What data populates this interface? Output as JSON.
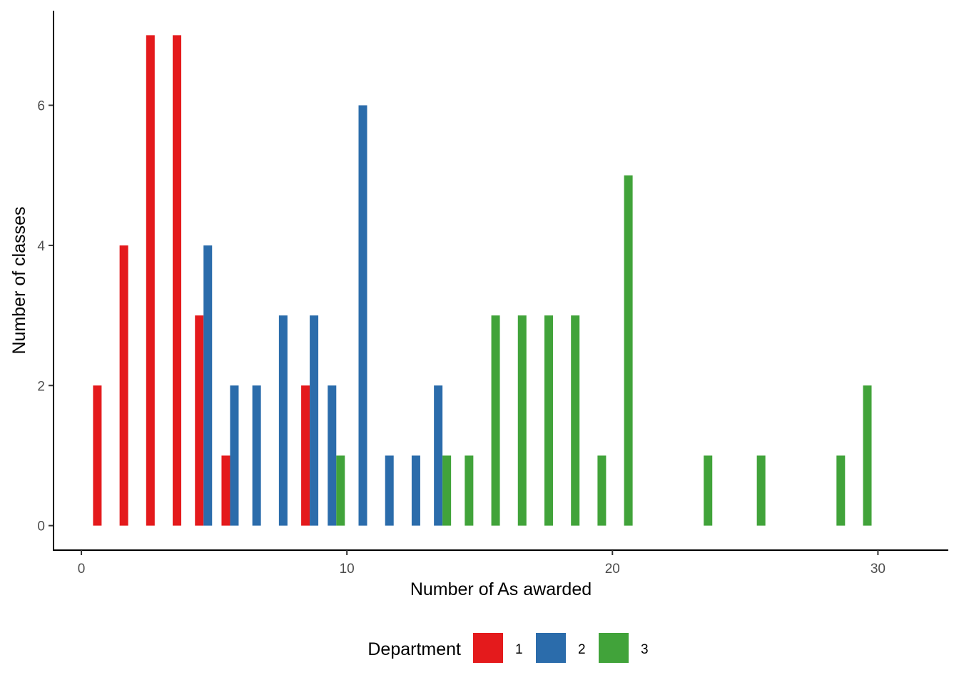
{
  "chart_data": {
    "type": "bar",
    "xlabel": "Number of As awarded",
    "ylabel": "Number of classes",
    "xlim": [
      -1.05,
      32.65
    ],
    "ylim": [
      -0.35,
      7.35
    ],
    "xticks": [
      0,
      10,
      20,
      30
    ],
    "yticks": [
      0,
      2,
      4,
      6
    ],
    "grid": false,
    "legend": {
      "title": "Department",
      "position": "bottom"
    },
    "series": [
      {
        "name": "1",
        "color": "#E41A1C",
        "points": [
          {
            "x": 1,
            "y": 2
          },
          {
            "x": 2,
            "y": 4
          },
          {
            "x": 3,
            "y": 7
          },
          {
            "x": 4,
            "y": 7
          },
          {
            "x": 5,
            "y": 3
          },
          {
            "x": 6,
            "y": 1
          },
          {
            "x": 9,
            "y": 2
          }
        ]
      },
      {
        "name": "2",
        "color": "#2B6CAB",
        "points": [
          {
            "x": 5,
            "y": 4
          },
          {
            "x": 6,
            "y": 2
          },
          {
            "x": 7,
            "y": 2
          },
          {
            "x": 8,
            "y": 3
          },
          {
            "x": 9,
            "y": 3
          },
          {
            "x": 10,
            "y": 2
          },
          {
            "x": 11,
            "y": 6
          },
          {
            "x": 12,
            "y": 1
          },
          {
            "x": 13,
            "y": 1
          },
          {
            "x": 14,
            "y": 2
          }
        ]
      },
      {
        "name": "3",
        "color": "#41A33A",
        "points": [
          {
            "x": 10,
            "y": 1
          },
          {
            "x": 14,
            "y": 1
          },
          {
            "x": 15,
            "y": 1
          },
          {
            "x": 16,
            "y": 3
          },
          {
            "x": 17,
            "y": 3
          },
          {
            "x": 18,
            "y": 3
          },
          {
            "x": 19,
            "y": 3
          },
          {
            "x": 20,
            "y": 1
          },
          {
            "x": 21,
            "y": 5
          },
          {
            "x": 24,
            "y": 1
          },
          {
            "x": 26,
            "y": 1
          },
          {
            "x": 29,
            "y": 1
          },
          {
            "x": 30,
            "y": 2
          }
        ]
      }
    ]
  }
}
